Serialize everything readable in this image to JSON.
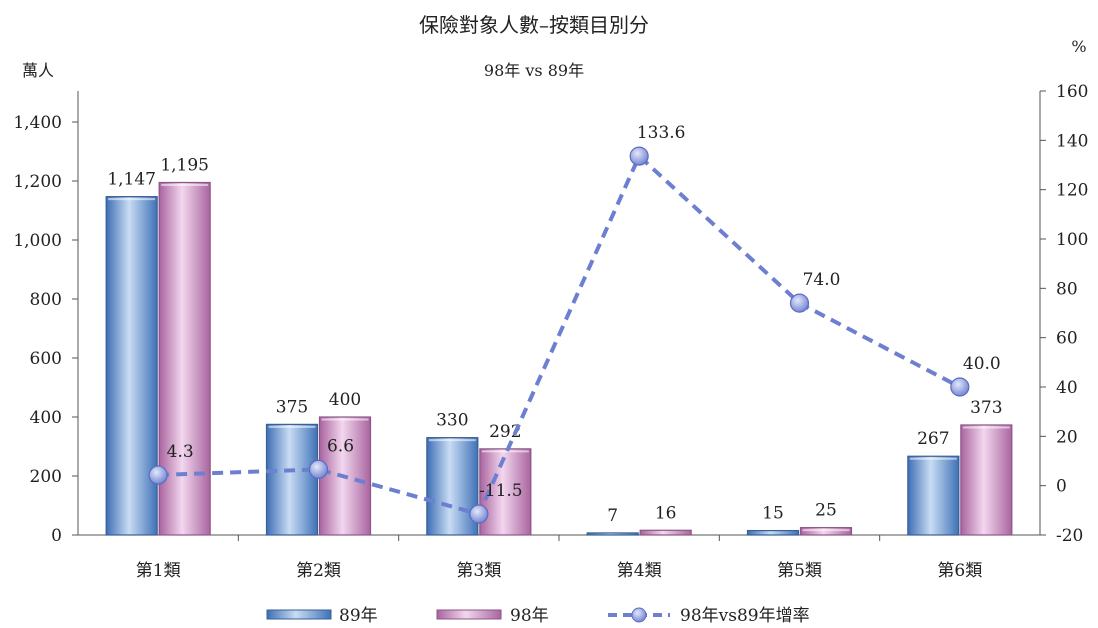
{
  "chart_data": {
    "type": "bar",
    "title": "保險對象人數–按類目別分",
    "subtitle": "98年 vs 89年",
    "ylabel_left": "萬人",
    "ylabel_right": "%",
    "categories": [
      "第1類",
      "第2類",
      "第3類",
      "第4類",
      "第5類",
      "第6類"
    ],
    "series": [
      {
        "name": "89年",
        "type": "bar",
        "axis": "left",
        "values": [
          1147,
          375,
          330,
          7,
          15,
          267
        ],
        "labels": [
          "1,147",
          "375",
          "330",
          "7",
          "15",
          "267"
        ],
        "color": "#5b8fd0"
      },
      {
        "name": "98年",
        "type": "bar",
        "axis": "left",
        "values": [
          1195,
          400,
          292,
          16,
          25,
          373
        ],
        "labels": [
          "1,195",
          "400",
          "292",
          "16",
          "25",
          "373"
        ],
        "color": "#c98cc4"
      },
      {
        "name": "98年vs89年增率",
        "type": "line",
        "axis": "right",
        "values": [
          4.3,
          6.6,
          -11.5,
          133.6,
          74.0,
          40.0
        ],
        "labels": [
          "4.3",
          "6.6",
          "-11.5",
          "133.6",
          "74.0",
          "40.0"
        ],
        "color": "#6d7fd0",
        "dashed": true
      }
    ],
    "ylim_left": [
      0,
      1400
    ],
    "yticks_left": [
      "0",
      "200",
      "400",
      "600",
      "800",
      "1,000",
      "1,200",
      "1,400"
    ],
    "ylim_right": [
      -20,
      160
    ],
    "yticks_right": [
      "-20",
      "0",
      "20",
      "40",
      "60",
      "80",
      "100",
      "120",
      "140",
      "160"
    ],
    "grid": false,
    "legend_position": "bottom"
  }
}
